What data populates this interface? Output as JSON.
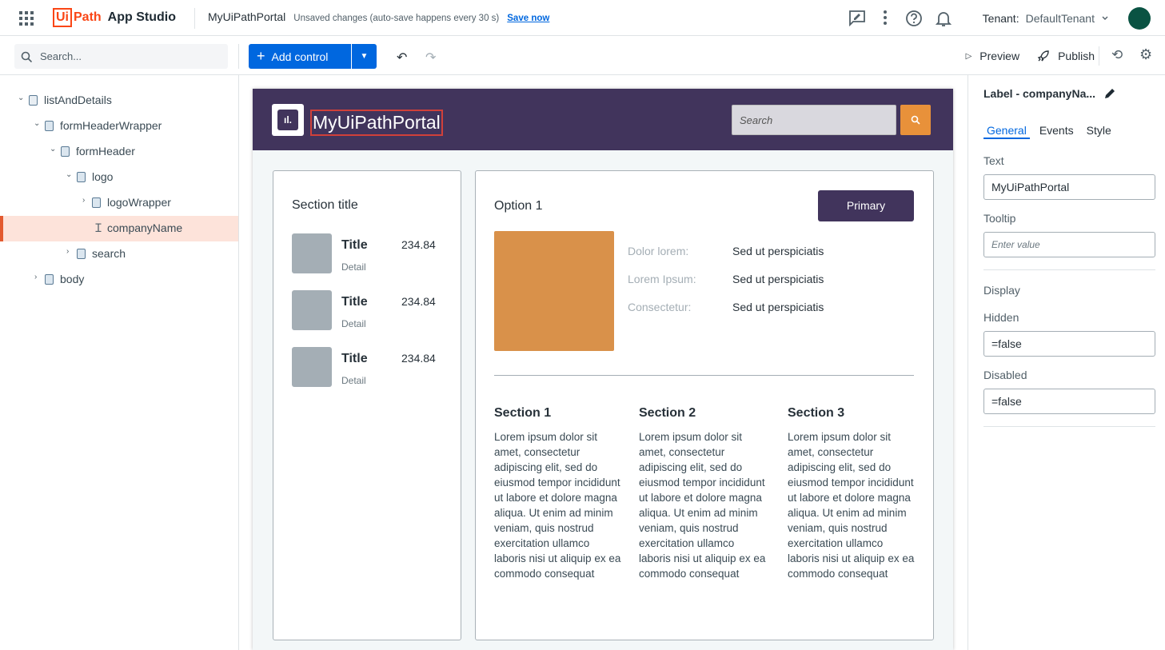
{
  "topbar": {
    "brand_ui": "Ui",
    "brand_path": "Path",
    "app_name": "App Studio",
    "project": "MyUiPathPortal",
    "status": "Unsaved changes (auto-save happens every 30 s)",
    "save_now": "Save now",
    "tenant_label": "Tenant:",
    "tenant_value": "DefaultTenant",
    "icons": [
      "apps-grid-icon",
      "feedback-icon",
      "more-vert-icon",
      "help-icon",
      "bell-icon"
    ]
  },
  "toolbar": {
    "search_placeholder": "Search...",
    "add_control": "Add control",
    "preview": "Preview",
    "publish": "Publish"
  },
  "tree": [
    {
      "label": "listAndDetails"
    },
    {
      "label": "formHeaderWrapper"
    },
    {
      "label": "formHeader"
    },
    {
      "label": "logo"
    },
    {
      "label": "logoWrapper"
    },
    {
      "label": "companyName"
    },
    {
      "label": "search"
    },
    {
      "label": "body"
    }
  ],
  "app": {
    "company_name": "MyUiPathPortal",
    "search_placeholder": "Search",
    "colors": {
      "header": "#41345c",
      "accent": "#e8913a"
    },
    "list": {
      "title": "Section title",
      "items": [
        {
          "title": "Title",
          "detail": "Detail",
          "value": "234.84"
        },
        {
          "title": "Title",
          "detail": "Detail",
          "value": "234.84"
        },
        {
          "title": "Title",
          "detail": "Detail",
          "value": "234.84"
        }
      ]
    },
    "detail": {
      "title": "Option 1",
      "primary": "Primary",
      "fields": [
        {
          "label": "Dolor lorem:",
          "value": "Sed ut perspiciatis"
        },
        {
          "label": "Lorem Ipsum:",
          "value": "Sed ut perspiciatis"
        },
        {
          "label": "Consectetur:",
          "value": "Sed ut perspiciatis"
        }
      ],
      "sections": [
        {
          "title": "Section 1",
          "text": "Lorem ipsum dolor sit amet, consectetur adipiscing elit, sed do eiusmod tempor incididunt ut labore et dolore magna aliqua. Ut enim ad minim veniam, quis nostrud exercitation ullamco laboris nisi ut aliquip ex ea commodo consequat"
        },
        {
          "title": "Section 2",
          "text": "Lorem ipsum dolor sit amet, consectetur adipiscing elit, sed do eiusmod tempor incididunt ut labore et dolore magna aliqua. Ut enim ad minim veniam, quis nostrud exercitation ullamco laboris nisi ut aliquip ex ea commodo consequat"
        },
        {
          "title": "Section 3",
          "text": "Lorem ipsum dolor sit amet, consectetur adipiscing elit, sed do eiusmod tempor incididunt ut labore et dolore magna aliqua. Ut enim ad minim veniam, quis nostrud exercitation ullamco laboris nisi ut aliquip ex ea commodo consequat"
        }
      ]
    }
  },
  "props": {
    "title": "Label - companyNa...",
    "tabs": [
      "General",
      "Events",
      "Style"
    ],
    "active_tab": "General",
    "text_label": "Text",
    "text_value": "MyUiPathPortal",
    "tooltip_label": "Tooltip",
    "tooltip_placeholder": "Enter value",
    "display_label": "Display",
    "hidden_label": "Hidden",
    "hidden_value": "=false",
    "disabled_label": "Disabled",
    "disabled_value": "=false"
  }
}
